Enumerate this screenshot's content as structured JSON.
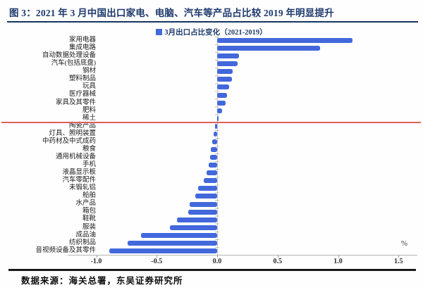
{
  "figure": {
    "title": "图 3：2021 年 3 月中国出口家电、电脑、汽车等产品占比较 2019 年明显提升",
    "source": "数据来源：海关总署，东吴证券研究所"
  },
  "chart_data": {
    "type": "bar",
    "orientation": "horizontal",
    "title": "图 3：2021 年 3 月中国出口家电、电脑、汽车等产品占比较 2019 年明显提升",
    "legend": "3月出口占比变化（2021-2019）",
    "legend_position": "top-center",
    "unit_label": "%",
    "xlabel": "",
    "ylabel": "",
    "xlim": [
      -1.16,
      1.66
    ],
    "x_ticks": [
      -1.0,
      -0.5,
      0.0,
      0.5,
      1.0,
      1.5
    ],
    "x_tick_labels": [
      "-1.0",
      "-0.5",
      "0.0",
      "0.5",
      "1.0",
      "1.5"
    ],
    "grid": false,
    "bar_color": "#4268db",
    "reference_line": {
      "type": "horizontal",
      "after_category": "稀土",
      "color": "#df5f5a"
    },
    "categories": [
      "家用电器",
      "集成电路",
      "自动数据处理设备",
      "汽车(包括底盘)",
      "钢材",
      "塑料制品",
      "玩具",
      "医疗器械",
      "家具及其零件",
      "肥料",
      "稀土",
      "陶瓷产品",
      "灯具、照明装置",
      "中药材及中式成药",
      "粮食",
      "通用机械设备",
      "手机",
      "液晶显示板",
      "汽车零配件",
      "未锻轧铝",
      "船舶",
      "水产品",
      "箱包",
      "鞋靴",
      "服装",
      "成品油",
      "纺织制品",
      "音视频设备及其零件"
    ],
    "values": [
      1.12,
      0.85,
      0.18,
      0.17,
      0.13,
      0.12,
      0.1,
      0.08,
      0.07,
      0.04,
      0.01,
      -0.02,
      -0.03,
      -0.04,
      -0.05,
      -0.06,
      -0.07,
      -0.09,
      -0.11,
      -0.16,
      -0.18,
      -0.23,
      -0.24,
      -0.33,
      -0.39,
      -0.63,
      -0.74,
      -0.89
    ]
  },
  "colors": {
    "title_navy": "#1e3a6d",
    "bar_blue": "#4268db",
    "reference_red": "#df5f5a",
    "axis_gray": "#b5b5b5"
  }
}
